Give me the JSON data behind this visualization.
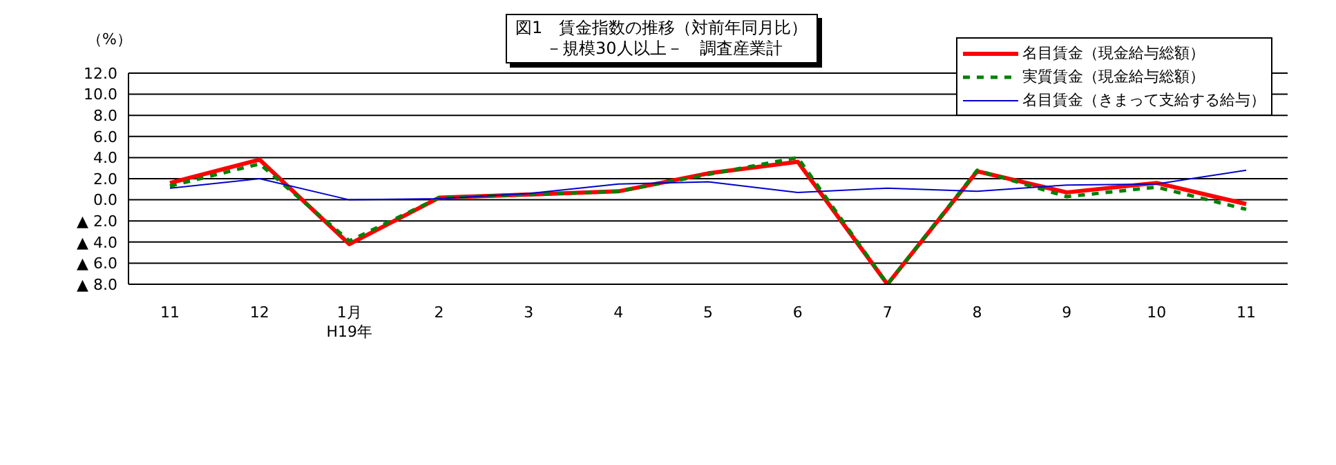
{
  "chart_data": {
    "type": "line",
    "title": "図1　賃金指数の推移（対前年同月比）",
    "subtitle": "－規模30人以上－　調査産業計",
    "ylabel": "（%）",
    "categories": [
      "11",
      "12",
      "1月\nH19年",
      "2",
      "3",
      "4",
      "5",
      "6",
      "7",
      "8",
      "9",
      "10",
      "11"
    ],
    "series": [
      {
        "name": "名目賃金（現金給与総額）",
        "color": "#ff0000",
        "line_style": "solid",
        "values": [
          1.6,
          3.8,
          -4.2,
          0.2,
          0.5,
          0.8,
          2.5,
          3.6,
          -8.0,
          2.7,
          0.7,
          1.6,
          -0.4
        ]
      },
      {
        "name": "実質賃金（現金給与総額）",
        "color": "#008000",
        "line_style": "dashed",
        "values": [
          1.3,
          3.4,
          -3.9,
          0.2,
          0.5,
          0.8,
          2.4,
          4.0,
          -8.0,
          2.8,
          0.3,
          1.2,
          -0.9
        ]
      },
      {
        "name": "名目賃金（きまって支給する給与）",
        "color": "#0000cc",
        "line_style": "solid",
        "values": [
          1.1,
          2.0,
          0.0,
          0.1,
          0.6,
          1.5,
          1.7,
          0.7,
          1.1,
          0.8,
          1.4,
          1.5,
          2.8
        ]
      }
    ],
    "ylim": [
      -8,
      12
    ],
    "yticks": [
      {
        "value": -8,
        "label": "▲ 8.0"
      },
      {
        "value": -6,
        "label": "▲ 6.0"
      },
      {
        "value": -4,
        "label": "▲ 4.0"
      },
      {
        "value": -2,
        "label": "▲ 2.0"
      },
      {
        "value": 0,
        "label": "0.0"
      },
      {
        "value": 2,
        "label": "2.0"
      },
      {
        "value": 4,
        "label": "4.0"
      },
      {
        "value": 6,
        "label": "6.0"
      },
      {
        "value": 8,
        "label": "8.0"
      },
      {
        "value": 10,
        "label": "10.0"
      },
      {
        "value": 12,
        "label": "12.0"
      }
    ],
    "grid": "y",
    "legend": "top right",
    "marker": "none"
  }
}
